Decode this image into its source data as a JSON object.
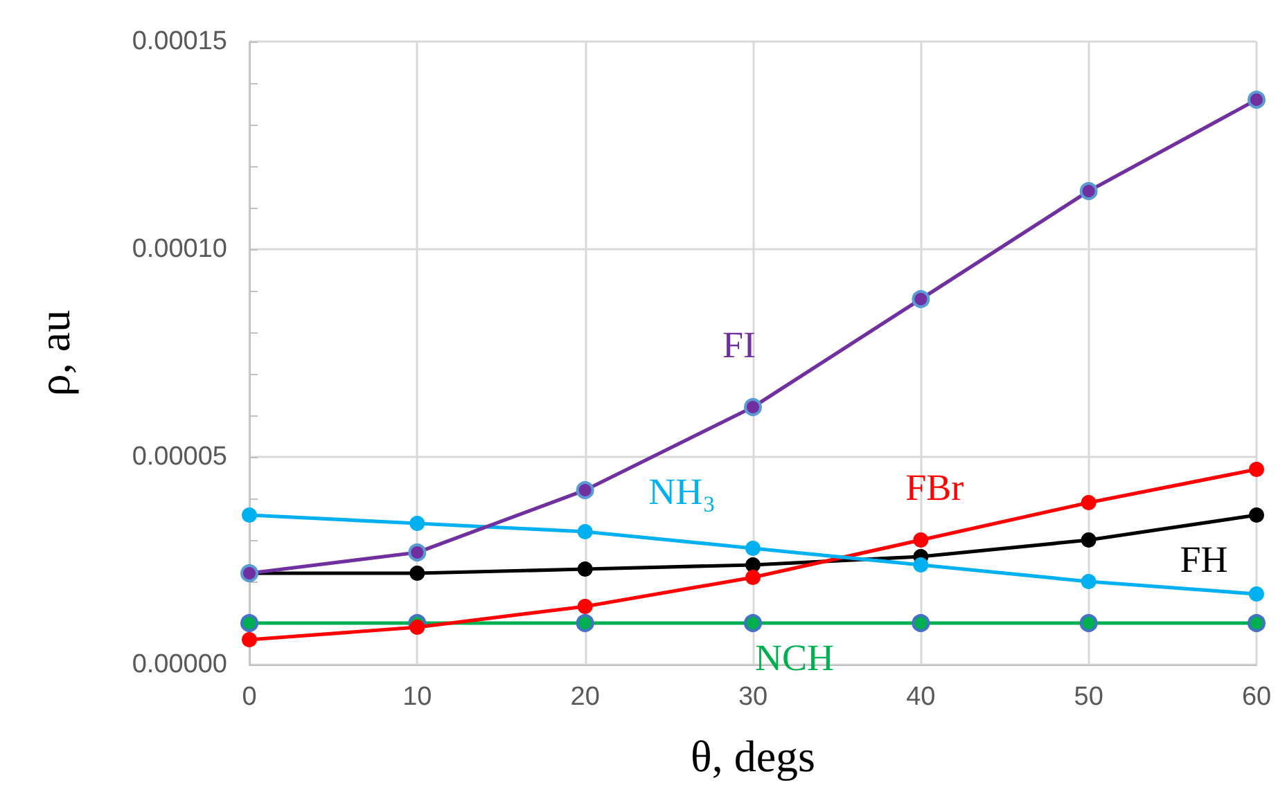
{
  "chart_data": {
    "type": "line",
    "xlabel": "θ, degs",
    "ylabel": "ρ, au",
    "x": [
      0,
      10,
      20,
      30,
      40,
      50,
      60
    ],
    "series": [
      {
        "name": "FI",
        "color": "#7030a0",
        "values": [
          2.2e-05,
          2.7e-05,
          4.2e-05,
          6.2e-05,
          8.8e-05,
          0.000114,
          0.000136
        ]
      },
      {
        "name": "NH₃",
        "color": "#00b0f0",
        "values": [
          3.6e-05,
          3.4e-05,
          3.2e-05,
          2.8e-05,
          2.4e-05,
          2e-05,
          1.7e-05
        ]
      },
      {
        "name": "FBr",
        "color": "#ff0000",
        "values": [
          6e-06,
          9e-06,
          1.4e-05,
          2.1e-05,
          3e-05,
          3.9e-05,
          4.7e-05
        ]
      },
      {
        "name": "FH",
        "color": "#000000",
        "values": [
          2.2e-05,
          2.2e-05,
          2.3e-05,
          2.4e-05,
          2.6e-05,
          3e-05,
          3.6e-05
        ]
      },
      {
        "name": "NCH",
        "color": "#00b050",
        "values": [
          1e-05,
          1e-05,
          1e-05,
          1e-05,
          1e-05,
          1e-05,
          1e-05
        ]
      }
    ],
    "xlim": [
      0,
      60
    ],
    "xticks": [
      0,
      10,
      20,
      30,
      40,
      50,
      60
    ],
    "ylim": [
      0,
      0.00015
    ],
    "yticks": [
      {
        "value": 0,
        "label": "0.00000"
      },
      {
        "value": 1e-05,
        "label": null
      },
      {
        "value": 2e-05,
        "label": null
      },
      {
        "value": 3e-05,
        "label": null
      },
      {
        "value": 4e-05,
        "label": null
      },
      {
        "value": 5e-05,
        "label": "0.00005"
      },
      {
        "value": 6e-05,
        "label": null
      },
      {
        "value": 7e-05,
        "label": null
      },
      {
        "value": 8e-05,
        "label": null
      },
      {
        "value": 9e-05,
        "label": null
      },
      {
        "value": 0.0001,
        "label": "0.00010"
      },
      {
        "value": 0.00011,
        "label": null
      },
      {
        "value": 0.00012,
        "label": null
      },
      {
        "value": 0.00013,
        "label": null
      },
      {
        "value": 0.00014,
        "label": null
      },
      {
        "value": 0.00015,
        "label": "0.00015"
      }
    ],
    "grid": true,
    "legend": false,
    "marker": "circle",
    "line_style": "solid"
  }
}
